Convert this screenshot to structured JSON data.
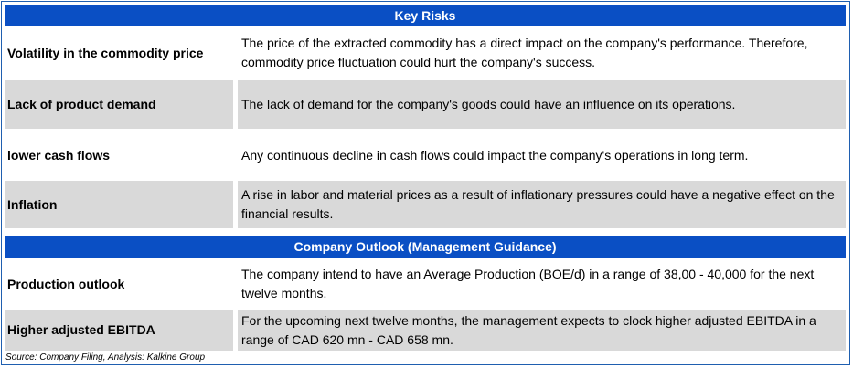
{
  "key_risks_header": "Key Risks",
  "risks": [
    {
      "label": "Volatility in the commodity price",
      "text": "The price of the extracted commodity has a direct impact on the company's performance. Therefore, commodity price fluctuation could hurt the company's success."
    },
    {
      "label": "Lack of product demand",
      "text": "The lack of demand for the company's goods could have an influence on its operations."
    },
    {
      "label": "lower cash flows",
      "text": "Any continuous decline in cash flows could impact the company's operations in long term."
    },
    {
      "label": "Inflation",
      "text": "A rise in labor and material prices as a result of inflationary pressures could have a negative effect on the financial results."
    }
  ],
  "outlook_header": "Company Outlook (Management Guidance)",
  "outlook": [
    {
      "label": "Production outlook",
      "text": "The company intend to have an Average Production (BOE/d) in a range of 38,00 - 40,000 for the next twelve months."
    },
    {
      "label": "Higher adjusted EBITDA",
      "text": "For the upcoming next twelve months, the management expects to clock higher adjusted EBITDA in a range of CAD 620 mn - CAD 658 mn."
    }
  ],
  "source": "Source: Company Filing, Analysis: Kalkine Group"
}
